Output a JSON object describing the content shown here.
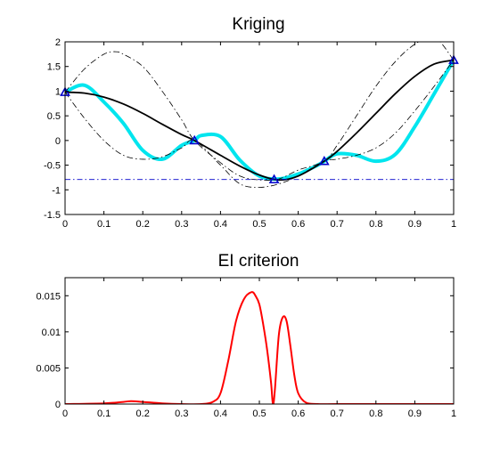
{
  "chart_data": [
    {
      "type": "line",
      "title": "Kriging",
      "xlim": [
        0,
        1
      ],
      "ylim": [
        -1.5,
        2
      ],
      "xticks": [
        "0",
        "0.1",
        "0.2",
        "0.3",
        "0.4",
        "0.5",
        "0.6",
        "0.7",
        "0.8",
        "0.9",
        "1"
      ],
      "yticks": [
        "-1.5",
        "-1",
        "-0.5",
        "0",
        "0.5",
        "1",
        "1.5",
        "2"
      ],
      "grid": false,
      "series": [
        {
          "role": "true-function",
          "color": "#00e5ee",
          "x": [
            0,
            0.05,
            0.1,
            0.15,
            0.2,
            0.25,
            0.3,
            0.333,
            0.35,
            0.4,
            0.45,
            0.5,
            0.55,
            0.6,
            0.65,
            0.667,
            0.7,
            0.75,
            0.8,
            0.85,
            0.9,
            0.95,
            1.0
          ],
          "y": [
            0.98,
            1.12,
            0.78,
            0.35,
            -0.2,
            -0.38,
            -0.1,
            0.0,
            0.1,
            0.08,
            -0.4,
            -0.72,
            -0.78,
            -0.68,
            -0.5,
            -0.42,
            -0.27,
            -0.3,
            -0.42,
            -0.28,
            0.28,
            0.95,
            1.63
          ]
        },
        {
          "role": "kriging-mean",
          "color": "#000000",
          "x": [
            0,
            0.05,
            0.1,
            0.15,
            0.2,
            0.25,
            0.3,
            0.333,
            0.4,
            0.45,
            0.5,
            0.55,
            0.6,
            0.667,
            0.7,
            0.75,
            0.8,
            0.85,
            0.9,
            0.95,
            1.0
          ],
          "y": [
            0.98,
            0.96,
            0.88,
            0.74,
            0.55,
            0.33,
            0.12,
            0.0,
            -0.3,
            -0.52,
            -0.7,
            -0.8,
            -0.72,
            -0.42,
            -0.22,
            0.15,
            0.55,
            0.95,
            1.3,
            1.55,
            1.63
          ]
        },
        {
          "role": "upper-bound",
          "color": "#000000",
          "x": [
            0,
            0.05,
            0.1,
            0.13,
            0.15,
            0.2,
            0.25,
            0.3,
            0.333,
            0.4,
            0.45,
            0.5,
            0.55,
            0.6,
            0.667,
            0.7,
            0.75,
            0.8,
            0.85,
            0.9,
            0.95,
            1.0
          ],
          "y": [
            0.98,
            1.45,
            1.75,
            1.8,
            1.75,
            1.5,
            1.0,
            0.42,
            0.0,
            -0.45,
            -0.72,
            -0.8,
            -0.78,
            -0.6,
            -0.42,
            -0.1,
            0.5,
            1.1,
            1.6,
            1.95,
            2.1,
            1.63
          ]
        },
        {
          "role": "lower-bound",
          "color": "#000000",
          "x": [
            0,
            0.05,
            0.1,
            0.15,
            0.2,
            0.25,
            0.3,
            0.333,
            0.4,
            0.45,
            0.5,
            0.55,
            0.6,
            0.667,
            0.7,
            0.75,
            0.8,
            0.85,
            0.9,
            0.95,
            1.0
          ],
          "y": [
            0.98,
            0.45,
            0.0,
            -0.3,
            -0.38,
            -0.33,
            -0.15,
            0.0,
            -0.5,
            -0.88,
            -0.95,
            -0.88,
            -0.72,
            -0.42,
            -0.38,
            -0.3,
            -0.15,
            0.15,
            0.6,
            1.1,
            1.63
          ]
        },
        {
          "role": "current-minimum",
          "color": "#0000cc",
          "x": [
            0,
            1
          ],
          "y": [
            -0.79,
            -0.79
          ]
        }
      ],
      "observations": {
        "color": "#0000cc",
        "x": [
          0,
          0.333,
          0.538,
          0.667,
          1.0
        ],
        "y": [
          0.98,
          0.0,
          -0.79,
          -0.42,
          1.63
        ]
      }
    },
    {
      "type": "line",
      "title": "EI criterion",
      "xlim": [
        0,
        1
      ],
      "ylim": [
        0,
        0.0175
      ],
      "xticks": [
        "0",
        "0.1",
        "0.2",
        "0.3",
        "0.4",
        "0.5",
        "0.6",
        "0.7",
        "0.8",
        "0.9",
        "1"
      ],
      "yticks": [
        "0",
        "0.005",
        "0.01",
        "0.015"
      ],
      "grid": false,
      "series": [
        {
          "role": "expected-improvement",
          "color": "#ff0000",
          "x": [
            0,
            0.1,
            0.15,
            0.17,
            0.2,
            0.25,
            0.3,
            0.35,
            0.38,
            0.4,
            0.42,
            0.44,
            0.46,
            0.48,
            0.49,
            0.5,
            0.51,
            0.52,
            0.53,
            0.535,
            0.54,
            0.55,
            0.56,
            0.57,
            0.58,
            0.59,
            0.6,
            0.62,
            0.65,
            0.7,
            0.8,
            0.9,
            1.0
          ],
          "y": [
            0.0,
            0.0001,
            0.0003,
            0.0004,
            0.0003,
            0.0001,
            0.0,
            0.0,
            0.0003,
            0.0015,
            0.006,
            0.0115,
            0.0145,
            0.0155,
            0.015,
            0.0138,
            0.011,
            0.0075,
            0.003,
            0.0,
            0.002,
            0.0095,
            0.012,
            0.0115,
            0.008,
            0.004,
            0.0015,
            0.0002,
            0.0,
            0.0,
            0.0,
            0.0,
            0.0
          ]
        }
      ]
    }
  ]
}
